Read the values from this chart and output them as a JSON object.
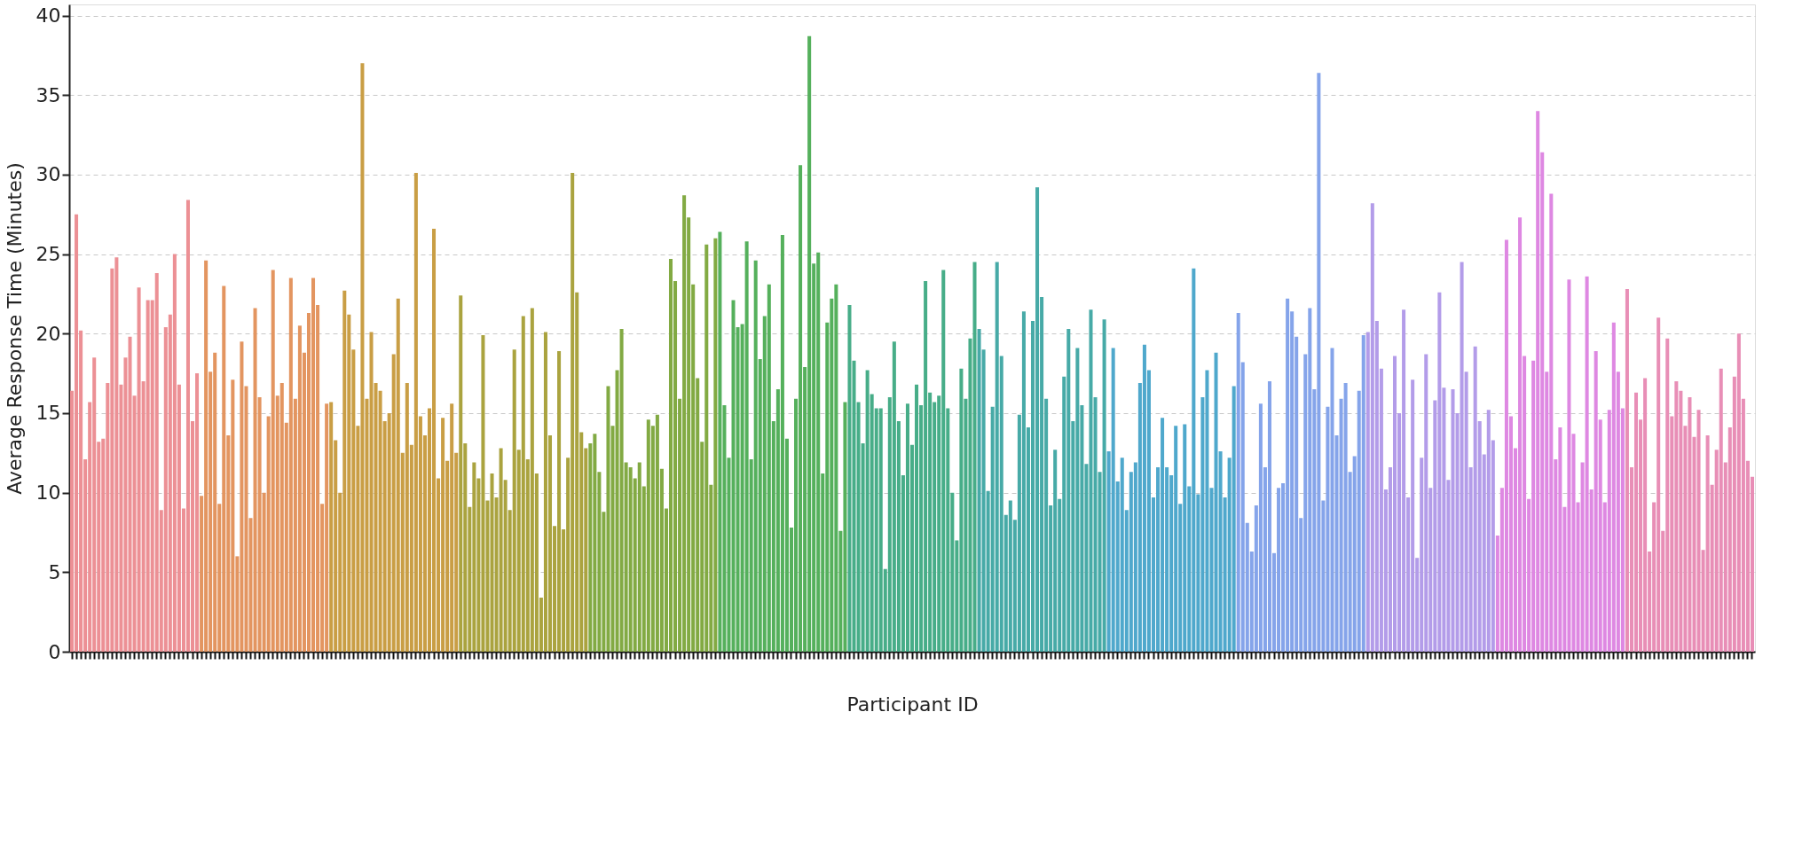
{
  "chart_data": {
    "type": "bar",
    "xlabel": "Participant ID",
    "ylabel": "Average Response Time (Minutes)",
    "categories": [
      null,
      null,
      null,
      null,
      null,
      null,
      null,
      null,
      null,
      null,
      null,
      null,
      null,
      null,
      null,
      null,
      null,
      null,
      null,
      null,
      null,
      null,
      null,
      null,
      null,
      null,
      null,
      null,
      null,
      null,
      null,
      null,
      null,
      null,
      null,
      null,
      null,
      null,
      null,
      null,
      null,
      null,
      null,
      null,
      null,
      null,
      null,
      null,
      null,
      null,
      null,
      null,
      null,
      null,
      null,
      null,
      null,
      null,
      null,
      null,
      null,
      null,
      null,
      null,
      null,
      null,
      null,
      null,
      null,
      null,
      null,
      null,
      null,
      null,
      null,
      null,
      null,
      null,
      null,
      null,
      null,
      null,
      null,
      null,
      null,
      null,
      null,
      null,
      null,
      null,
      null,
      null,
      null,
      null,
      null,
      null,
      null,
      null,
      null,
      null,
      null,
      null,
      null,
      null,
      null,
      null,
      null,
      null,
      null,
      null,
      null,
      null,
      null,
      null,
      null,
      null,
      null,
      null,
      null,
      null,
      null,
      null,
      null,
      null,
      null,
      null,
      null,
      null,
      null,
      null,
      null,
      null,
      null,
      null,
      null,
      null,
      null,
      null,
      null,
      null,
      null,
      null,
      null,
      null,
      null,
      null,
      null,
      null,
      null,
      null,
      null,
      null,
      null,
      null,
      null,
      null,
      null,
      null,
      null,
      null,
      null,
      null,
      null,
      null,
      null,
      null,
      null,
      null,
      null,
      null,
      null,
      null,
      null,
      null,
      null,
      null,
      null,
      null,
      null,
      null,
      null,
      null,
      null,
      null,
      null,
      null,
      null,
      null,
      null,
      null,
      null,
      null,
      null,
      null,
      null,
      null,
      null,
      null,
      null,
      null,
      null,
      null,
      null,
      null,
      null,
      null,
      null,
      null,
      null,
      null,
      null,
      null,
      null,
      null,
      null,
      null,
      null,
      null,
      null,
      null,
      null,
      null,
      null,
      null,
      null,
      null,
      null,
      null,
      null,
      null,
      null,
      null,
      null,
      null,
      null,
      null,
      null,
      null,
      null,
      null,
      null,
      null,
      null,
      null,
      null,
      null,
      null,
      null,
      null,
      null,
      null,
      null,
      null,
      null,
      null,
      null,
      null,
      null,
      null,
      null,
      null,
      null,
      null,
      null,
      null,
      null,
      null,
      null,
      null,
      null,
      null,
      null,
      null,
      null,
      null,
      null,
      null,
      null,
      null,
      null,
      null,
      null,
      null,
      null,
      null,
      null,
      null,
      null,
      null,
      null,
      null,
      null,
      null,
      null,
      null,
      null,
      null,
      null,
      null,
      null,
      null,
      null,
      null,
      null,
      null,
      null,
      null,
      null,
      null,
      null,
      null,
      null,
      null,
      null,
      null,
      null,
      null,
      null,
      null,
      null,
      null,
      null,
      null,
      null,
      null,
      null,
      null,
      null,
      null,
      null,
      null,
      null,
      null,
      null,
      null,
      null,
      null,
      null,
      null,
      null,
      null,
      null,
      null,
      null,
      null,
      null,
      null,
      null,
      null,
      null,
      null,
      null,
      null,
      null,
      null,
      null,
      null,
      null,
      null,
      null,
      null,
      null,
      null,
      null,
      null,
      null,
      null,
      null,
      null,
      null,
      null,
      null,
      null,
      null,
      null,
      null,
      null
    ],
    "values": [
      16.4,
      27.5,
      20.2,
      12.1,
      15.7,
      18.5,
      13.2,
      13.4,
      16.9,
      24.1,
      24.8,
      16.8,
      18.5,
      19.8,
      16.1,
      22.9,
      17.0,
      22.1,
      22.1,
      23.8,
      8.9,
      20.4,
      21.2,
      25.0,
      16.8,
      9.0,
      28.4,
      14.5,
      17.5,
      9.8,
      24.6,
      17.6,
      18.8,
      9.3,
      23.0,
      13.6,
      17.1,
      6.0,
      19.5,
      16.7,
      8.4,
      21.6,
      16.0,
      10.0,
      14.8,
      24.0,
      16.1,
      16.9,
      14.4,
      23.5,
      15.9,
      20.5,
      18.8,
      21.3,
      23.5,
      21.8,
      9.3,
      15.6,
      15.7,
      13.3,
      10.0,
      22.7,
      21.2,
      19.0,
      14.2,
      37.0,
      15.9,
      20.1,
      16.9,
      16.4,
      14.5,
      15.0,
      18.7,
      22.2,
      12.5,
      16.9,
      13.0,
      30.1,
      14.8,
      13.6,
      15.3,
      26.6,
      10.9,
      14.7,
      12.0,
      15.6,
      12.5,
      22.4,
      13.1,
      9.1,
      11.9,
      10.9,
      19.9,
      9.5,
      11.2,
      9.7,
      12.8,
      10.8,
      8.9,
      19.0,
      12.7,
      21.1,
      12.1,
      21.6,
      11.2,
      3.4,
      20.1,
      13.6,
      7.9,
      18.9,
      7.7,
      12.2,
      30.1,
      22.6,
      13.8,
      12.8,
      13.1,
      13.7,
      11.3,
      8.8,
      16.7,
      14.2,
      17.7,
      20.3,
      11.9,
      11.6,
      10.9,
      11.9,
      10.4,
      14.6,
      14.2,
      14.9,
      11.5,
      9.0,
      24.7,
      23.3,
      15.9,
      28.7,
      27.3,
      23.1,
      17.2,
      13.2,
      25.6,
      10.5,
      26.0,
      26.4,
      15.5,
      12.2,
      22.1,
      20.4,
      20.6,
      25.8,
      12.1,
      24.6,
      18.4,
      21.1,
      23.1,
      14.5,
      16.5,
      26.2,
      13.4,
      7.8,
      15.9,
      30.6,
      17.9,
      38.7,
      24.4,
      25.1,
      11.2,
      20.7,
      22.2,
      23.1,
      7.6,
      15.7,
      21.8,
      18.3,
      15.7,
      13.1,
      17.7,
      16.2,
      15.3,
      15.3,
      5.2,
      16.0,
      19.5,
      14.5,
      11.1,
      15.6,
      13.0,
      16.8,
      15.5,
      23.3,
      16.3,
      15.7,
      16.1,
      24.0,
      15.3,
      10.0,
      7.0,
      17.8,
      15.9,
      19.7,
      24.5,
      20.3,
      19.0,
      10.1,
      15.4,
      24.5,
      18.6,
      8.6,
      9.5,
      8.3,
      14.9,
      21.4,
      14.1,
      20.8,
      29.2,
      22.3,
      15.9,
      9.2,
      12.7,
      9.6,
      17.3,
      20.3,
      14.5,
      19.1,
      15.5,
      11.8,
      21.5,
      16.0,
      11.3,
      20.9,
      12.6,
      19.1,
      10.7,
      12.2,
      8.9,
      11.3,
      11.9,
      16.9,
      19.3,
      17.7,
      9.7,
      11.6,
      14.7,
      11.6,
      11.1,
      14.2,
      9.3,
      14.3,
      10.4,
      24.1,
      9.9,
      16.0,
      17.7,
      10.3,
      18.8,
      12.6,
      9.7,
      12.2,
      16.7,
      21.3,
      18.2,
      8.1,
      6.3,
      9.2,
      15.6,
      11.6,
      17.0,
      6.2,
      10.3,
      10.6,
      22.2,
      21.4,
      19.8,
      8.4,
      18.7,
      21.6,
      16.5,
      36.4,
      9.5,
      15.4,
      19.1,
      13.6,
      15.9,
      16.9,
      11.3,
      12.3,
      16.4,
      19.9,
      20.1,
      28.2,
      20.8,
      17.8,
      10.2,
      11.6,
      18.6,
      15.0,
      21.5,
      9.7,
      17.1,
      5.9,
      12.2,
      18.7,
      10.3,
      15.8,
      22.6,
      16.6,
      10.8,
      16.5,
      15.0,
      24.5,
      17.6,
      11.6,
      19.2,
      14.5,
      12.4,
      15.2,
      13.3,
      7.3,
      10.3,
      25.9,
      14.8,
      12.8,
      27.3,
      18.6,
      9.6,
      18.3,
      34.0,
      31.4,
      17.6,
      28.8,
      12.1,
      14.1,
      9.1,
      23.4,
      13.7,
      9.4,
      11.9,
      23.6,
      10.2,
      18.9,
      14.6,
      9.4,
      15.2,
      20.7,
      17.6,
      15.3,
      22.8,
      11.6,
      16.3,
      14.6,
      17.2,
      6.3,
      9.4,
      21.0,
      7.6,
      19.7,
      14.8,
      17.0,
      16.4,
      14.2,
      16.0,
      13.5,
      15.2,
      6.4,
      13.6,
      10.5,
      12.7,
      17.8,
      11.9,
      14.1,
      17.3,
      20.0,
      15.9,
      12.0,
      11.0
    ],
    "colors": [
      "#ec9095",
      "#ec9095",
      "#ec9095",
      "#ec9095",
      "#ec9095",
      "#ec9095",
      "#ec9095",
      "#ec9095",
      "#ec9095",
      "#ec9095",
      "#ec9095",
      "#ec9095",
      "#ec9095",
      "#ec9095",
      "#ec9095",
      "#ec9095",
      "#ec9095",
      "#ec9095",
      "#ec9095",
      "#ec9095",
      "#ec9095",
      "#ec9095",
      "#ec9095",
      "#ec9095",
      "#ec9095",
      "#ec9095",
      "#ec9095",
      "#ec9095",
      "#ec9095",
      "#e39560",
      "#e39560",
      "#e39560",
      "#e39560",
      "#e39560",
      "#e39560",
      "#e39560",
      "#e39560",
      "#e39560",
      "#e39560",
      "#e39560",
      "#e39560",
      "#e39560",
      "#e39560",
      "#e39560",
      "#e39560",
      "#e39560",
      "#e39560",
      "#e39560",
      "#e39560",
      "#e39560",
      "#e39560",
      "#e39560",
      "#e39560",
      "#e39560",
      "#e39560",
      "#e39560",
      "#e39560",
      "#e39560",
      "#c99e45",
      "#c99e45",
      "#c99e45",
      "#c99e45",
      "#c99e45",
      "#c99e45",
      "#c99e45",
      "#c99e45",
      "#c99e45",
      "#c99e45",
      "#c99e45",
      "#c99e45",
      "#c99e45",
      "#c99e45",
      "#c99e45",
      "#c99e45",
      "#c99e45",
      "#c99e45",
      "#c99e45",
      "#c99e45",
      "#c99e45",
      "#c99e45",
      "#c99e45",
      "#c99e45",
      "#c99e45",
      "#c99e45",
      "#c99e45",
      "#c99e45",
      "#c99e45",
      "#aaa33f",
      "#aaa33f",
      "#aaa33f",
      "#aaa33f",
      "#aaa33f",
      "#aaa33f",
      "#aaa33f",
      "#aaa33f",
      "#aaa33f",
      "#aaa33f",
      "#aaa33f",
      "#aaa33f",
      "#aaa33f",
      "#aaa33f",
      "#aaa33f",
      "#aaa33f",
      "#aaa33f",
      "#aaa33f",
      "#aaa33f",
      "#aaa33f",
      "#aaa33f",
      "#aaa33f",
      "#aaa33f",
      "#aaa33f",
      "#aaa33f",
      "#aaa33f",
      "#aaa33f",
      "#aaa33f",
      "#aaa33f",
      "#82aa43",
      "#82aa43",
      "#82aa43",
      "#82aa43",
      "#82aa43",
      "#82aa43",
      "#82aa43",
      "#82aa43",
      "#82aa43",
      "#82aa43",
      "#82aa43",
      "#82aa43",
      "#82aa43",
      "#82aa43",
      "#82aa43",
      "#82aa43",
      "#82aa43",
      "#82aa43",
      "#82aa43",
      "#82aa43",
      "#82aa43",
      "#82aa43",
      "#82aa43",
      "#82aa43",
      "#82aa43",
      "#82aa43",
      "#82aa43",
      "#82aa43",
      "#82aa43",
      "#55b05c",
      "#55b05c",
      "#55b05c",
      "#55b05c",
      "#55b05c",
      "#55b05c",
      "#55b05c",
      "#55b05c",
      "#55b05c",
      "#55b05c",
      "#55b05c",
      "#55b05c",
      "#55b05c",
      "#55b05c",
      "#55b05c",
      "#55b05c",
      "#55b05c",
      "#55b05c",
      "#55b05c",
      "#55b05c",
      "#55b05c",
      "#55b05c",
      "#55b05c",
      "#55b05c",
      "#55b05c",
      "#55b05c",
      "#55b05c",
      "#55b05c",
      "#55b05c",
      "#47ad88",
      "#47ad88",
      "#47ad88",
      "#47ad88",
      "#47ad88",
      "#47ad88",
      "#47ad88",
      "#47ad88",
      "#47ad88",
      "#47ad88",
      "#47ad88",
      "#47ad88",
      "#47ad88",
      "#47ad88",
      "#47ad88",
      "#47ad88",
      "#47ad88",
      "#47ad88",
      "#47ad88",
      "#47ad88",
      "#47ad88",
      "#47ad88",
      "#47ad88",
      "#47ad88",
      "#47ad88",
      "#47ad88",
      "#47ad88",
      "#47ad88",
      "#47ad88",
      "#47aaa7",
      "#47aaa7",
      "#47aaa7",
      "#47aaa7",
      "#47aaa7",
      "#47aaa7",
      "#47aaa7",
      "#47aaa7",
      "#47aaa7",
      "#47aaa7",
      "#47aaa7",
      "#47aaa7",
      "#47aaa7",
      "#47aaa7",
      "#47aaa7",
      "#47aaa7",
      "#47aaa7",
      "#47aaa7",
      "#47aaa7",
      "#47aaa7",
      "#47aaa7",
      "#47aaa7",
      "#47aaa7",
      "#47aaa7",
      "#47aaa7",
      "#47aaa7",
      "#47aaa7",
      "#47aaa7",
      "#47aaa7",
      "#4fa8cc",
      "#4fa8cc",
      "#4fa8cc",
      "#4fa8cc",
      "#4fa8cc",
      "#4fa8cc",
      "#4fa8cc",
      "#4fa8cc",
      "#4fa8cc",
      "#4fa8cc",
      "#4fa8cc",
      "#4fa8cc",
      "#4fa8cc",
      "#4fa8cc",
      "#4fa8cc",
      "#4fa8cc",
      "#4fa8cc",
      "#4fa8cc",
      "#4fa8cc",
      "#4fa8cc",
      "#4fa8cc",
      "#4fa8cc",
      "#4fa8cc",
      "#4fa8cc",
      "#4fa8cc",
      "#4fa8cc",
      "#4fa8cc",
      "#4fa8cc",
      "#4fa8cc",
      "#85a4ea",
      "#85a4ea",
      "#85a4ea",
      "#85a4ea",
      "#85a4ea",
      "#85a4ea",
      "#85a4ea",
      "#85a4ea",
      "#85a4ea",
      "#85a4ea",
      "#85a4ea",
      "#85a4ea",
      "#85a4ea",
      "#85a4ea",
      "#85a4ea",
      "#85a4ea",
      "#85a4ea",
      "#85a4ea",
      "#85a4ea",
      "#85a4ea",
      "#85a4ea",
      "#85a4ea",
      "#85a4ea",
      "#85a4ea",
      "#85a4ea",
      "#85a4ea",
      "#85a4ea",
      "#85a4ea",
      "#85a4ea",
      "#b39ce9",
      "#b39ce9",
      "#b39ce9",
      "#b39ce9",
      "#b39ce9",
      "#b39ce9",
      "#b39ce9",
      "#b39ce9",
      "#b39ce9",
      "#b39ce9",
      "#b39ce9",
      "#b39ce9",
      "#b39ce9",
      "#b39ce9",
      "#b39ce9",
      "#b39ce9",
      "#b39ce9",
      "#b39ce9",
      "#b39ce9",
      "#b39ce9",
      "#b39ce9",
      "#b39ce9",
      "#b39ce9",
      "#b39ce9",
      "#b39ce9",
      "#b39ce9",
      "#b39ce9",
      "#b39ce9",
      "#b39ce9",
      "#de88e2",
      "#de88e2",
      "#de88e2",
      "#de88e2",
      "#de88e2",
      "#de88e2",
      "#de88e2",
      "#de88e2",
      "#de88e2",
      "#de88e2",
      "#de88e2",
      "#de88e2",
      "#de88e2",
      "#de88e2",
      "#de88e2",
      "#de88e2",
      "#de88e2",
      "#de88e2",
      "#de88e2",
      "#de88e2",
      "#de88e2",
      "#de88e2",
      "#de88e2",
      "#de88e2",
      "#de88e2",
      "#de88e2",
      "#de88e2",
      "#de88e2",
      "#de88e2",
      "#e88eb6",
      "#e88eb6",
      "#e88eb6",
      "#e88eb6",
      "#e88eb6",
      "#e88eb6",
      "#e88eb6",
      "#e88eb6",
      "#e88eb6",
      "#e88eb6",
      "#e88eb6",
      "#e88eb6",
      "#e88eb6",
      "#e88eb6",
      "#e88eb6",
      "#e88eb6",
      "#e88eb6",
      "#e88eb6",
      "#e88eb6",
      "#e88eb6",
      "#e88eb6",
      "#e88eb6",
      "#e88eb6",
      "#e88eb6",
      "#e88eb6",
      "#e88eb6",
      "#e88eb6",
      "#e88eb6",
      "#e88eb6"
    ],
    "ylim": [
      0,
      40.7
    ],
    "yticks": [
      0,
      5,
      10,
      15,
      20,
      25,
      30,
      35,
      40
    ],
    "grid": "y",
    "tick_labels": "y"
  }
}
